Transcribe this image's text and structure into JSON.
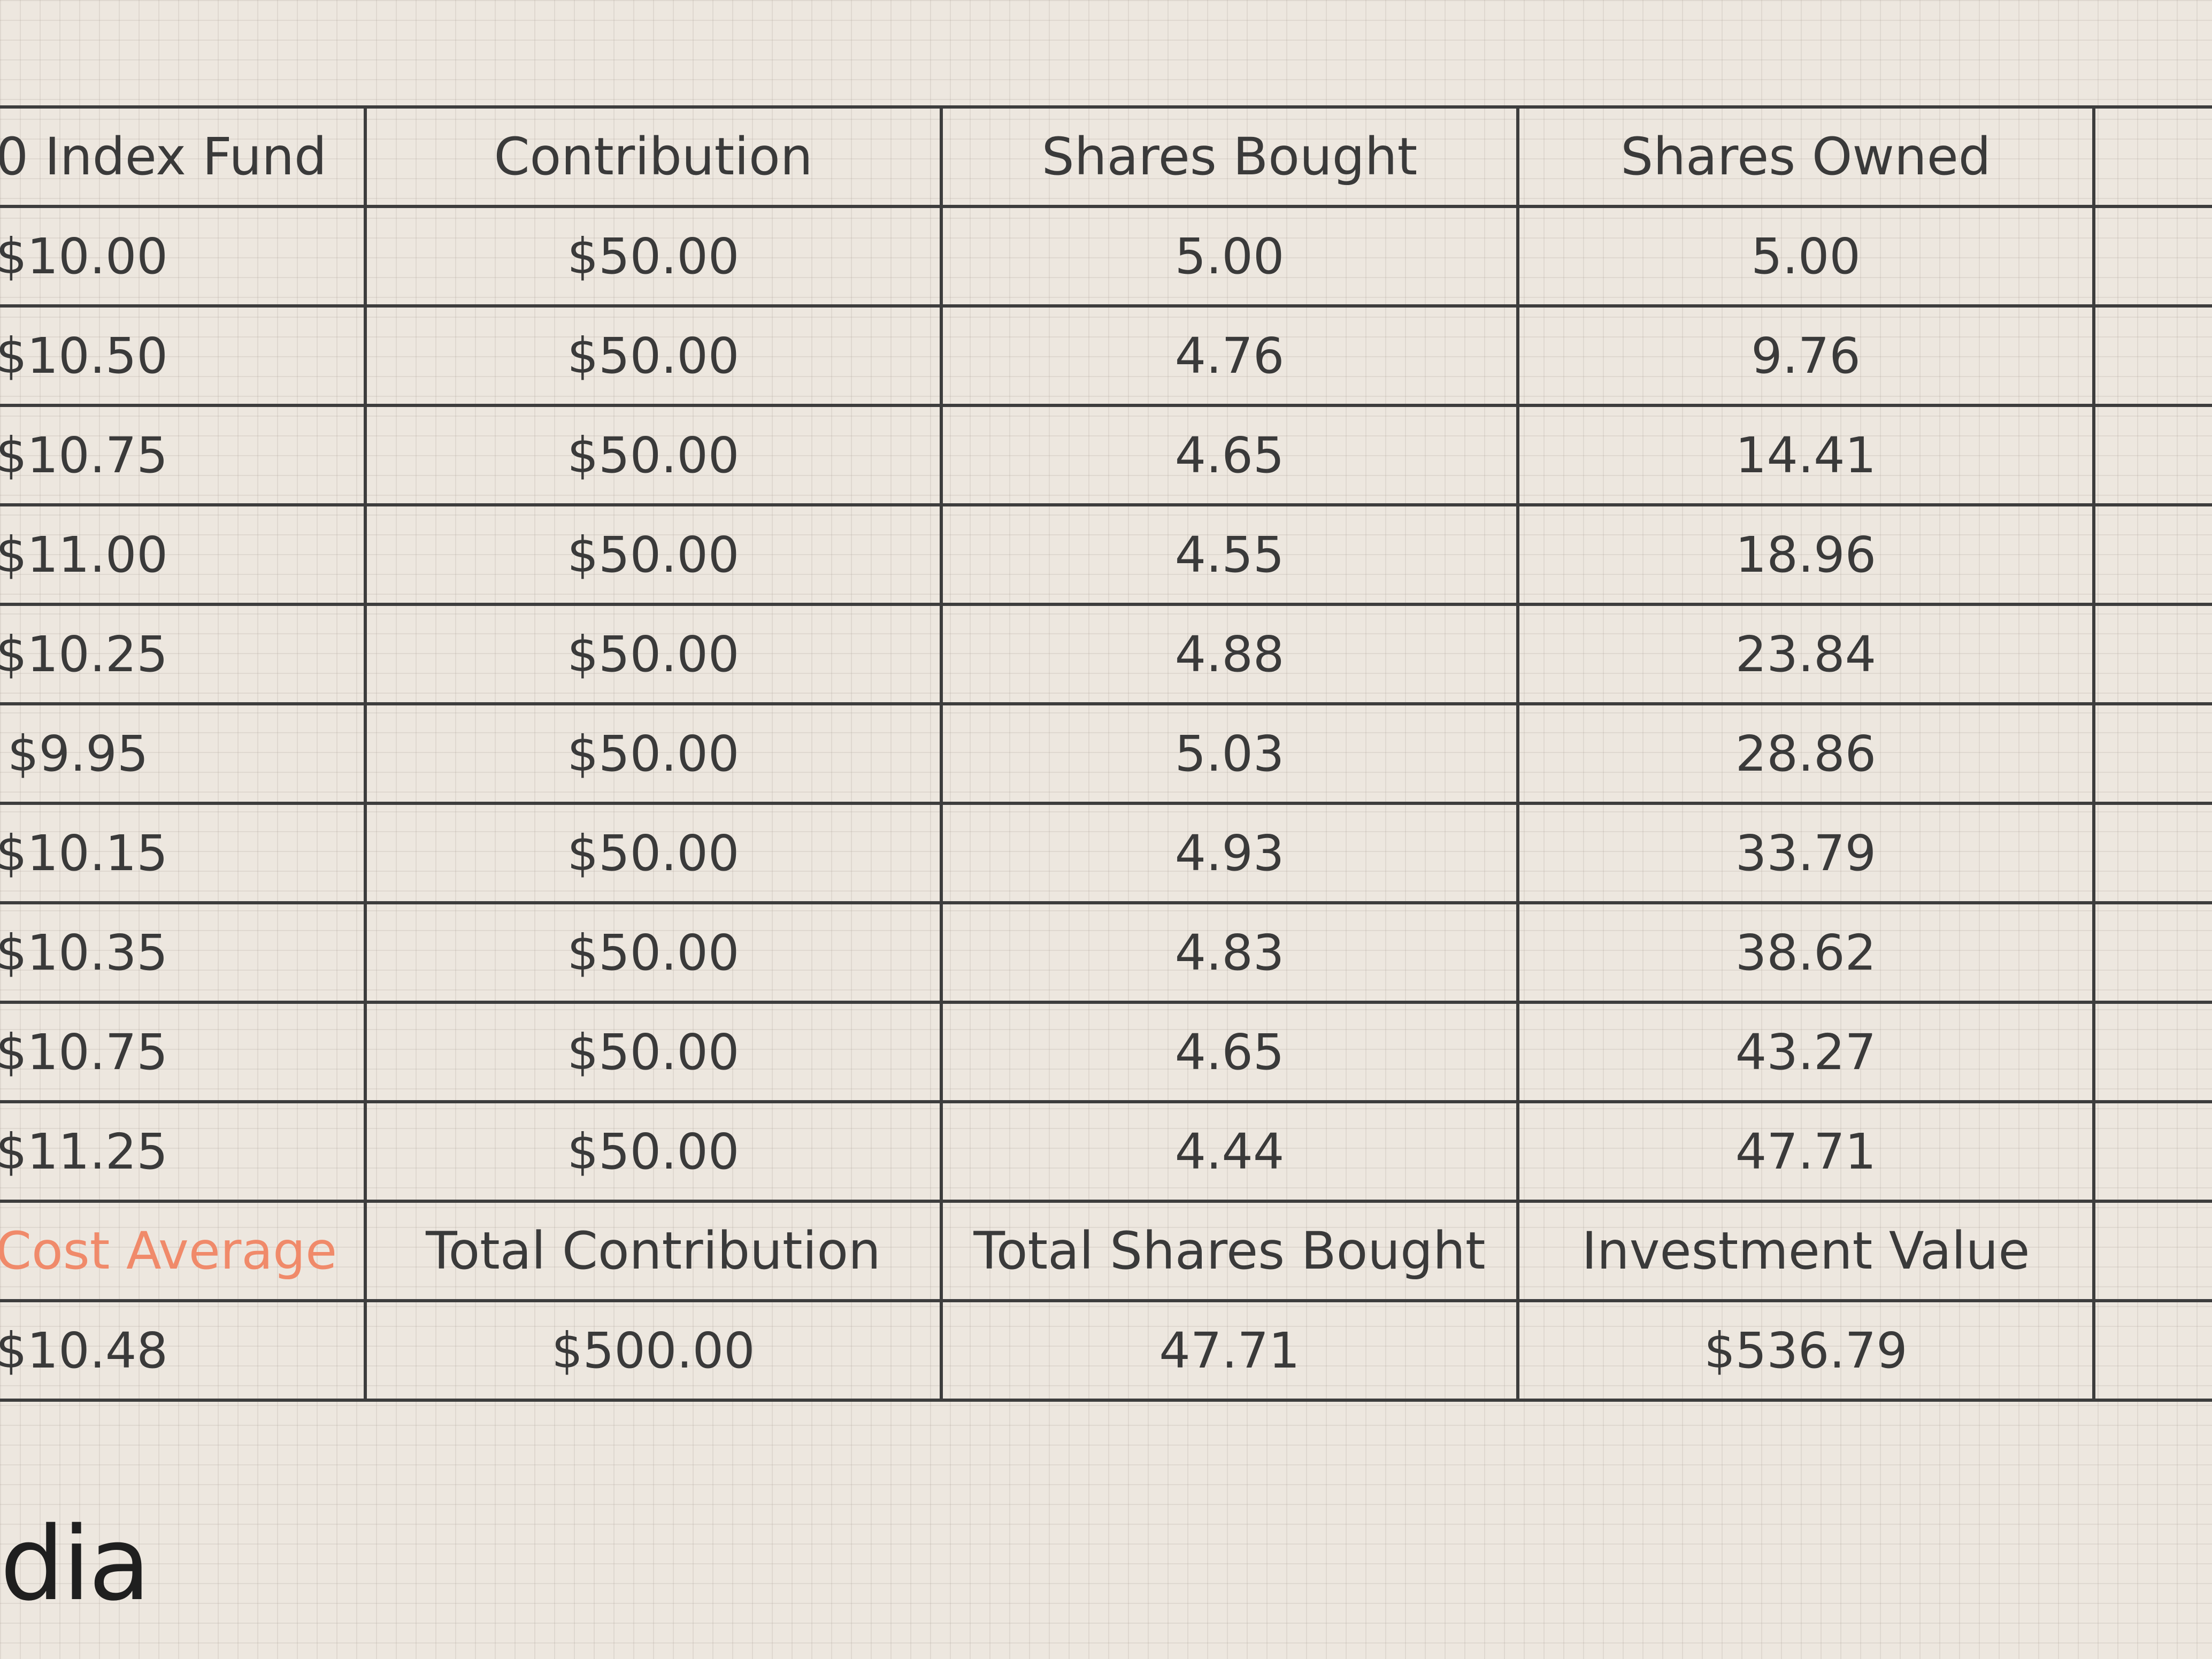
{
  "table": {
    "headers": [
      "0 Index Fund",
      "Contribution",
      "Shares Bought",
      "Shares Owned",
      ""
    ],
    "rows": [
      [
        "$10.00",
        "$50.00",
        "5.00",
        "5.00",
        ""
      ],
      [
        "$10.50",
        "$50.00",
        "4.76",
        "9.76",
        ""
      ],
      [
        "$10.75",
        "$50.00",
        "4.65",
        "14.41",
        ""
      ],
      [
        "$11.00",
        "$50.00",
        "4.55",
        "18.96",
        ""
      ],
      [
        "$10.25",
        "$50.00",
        "4.88",
        "23.84",
        ""
      ],
      [
        "$9.95",
        "$50.00",
        "5.03",
        "28.86",
        ""
      ],
      [
        "$10.15",
        "$50.00",
        "4.93",
        "33.79",
        ""
      ],
      [
        "$10.35",
        "$50.00",
        "4.83",
        "38.62",
        ""
      ],
      [
        "$10.75",
        "$50.00",
        "4.65",
        "43.27",
        ""
      ],
      [
        "$11.25",
        "$50.00",
        "4.44",
        "47.71",
        ""
      ]
    ],
    "summary_headers": [
      "Cost Average",
      "Total Contribution",
      "Total Shares Bought",
      "Investment Value",
      ""
    ],
    "summary_values": [
      "$10.48",
      "$500.00",
      "47.71",
      "$536.79",
      ""
    ]
  },
  "brand": {
    "text": "dia"
  },
  "colors": {
    "background": "#ede7df",
    "grid_line": "#3d3d3d",
    "text": "#3a3a3a",
    "accent": "#f08a6a"
  }
}
